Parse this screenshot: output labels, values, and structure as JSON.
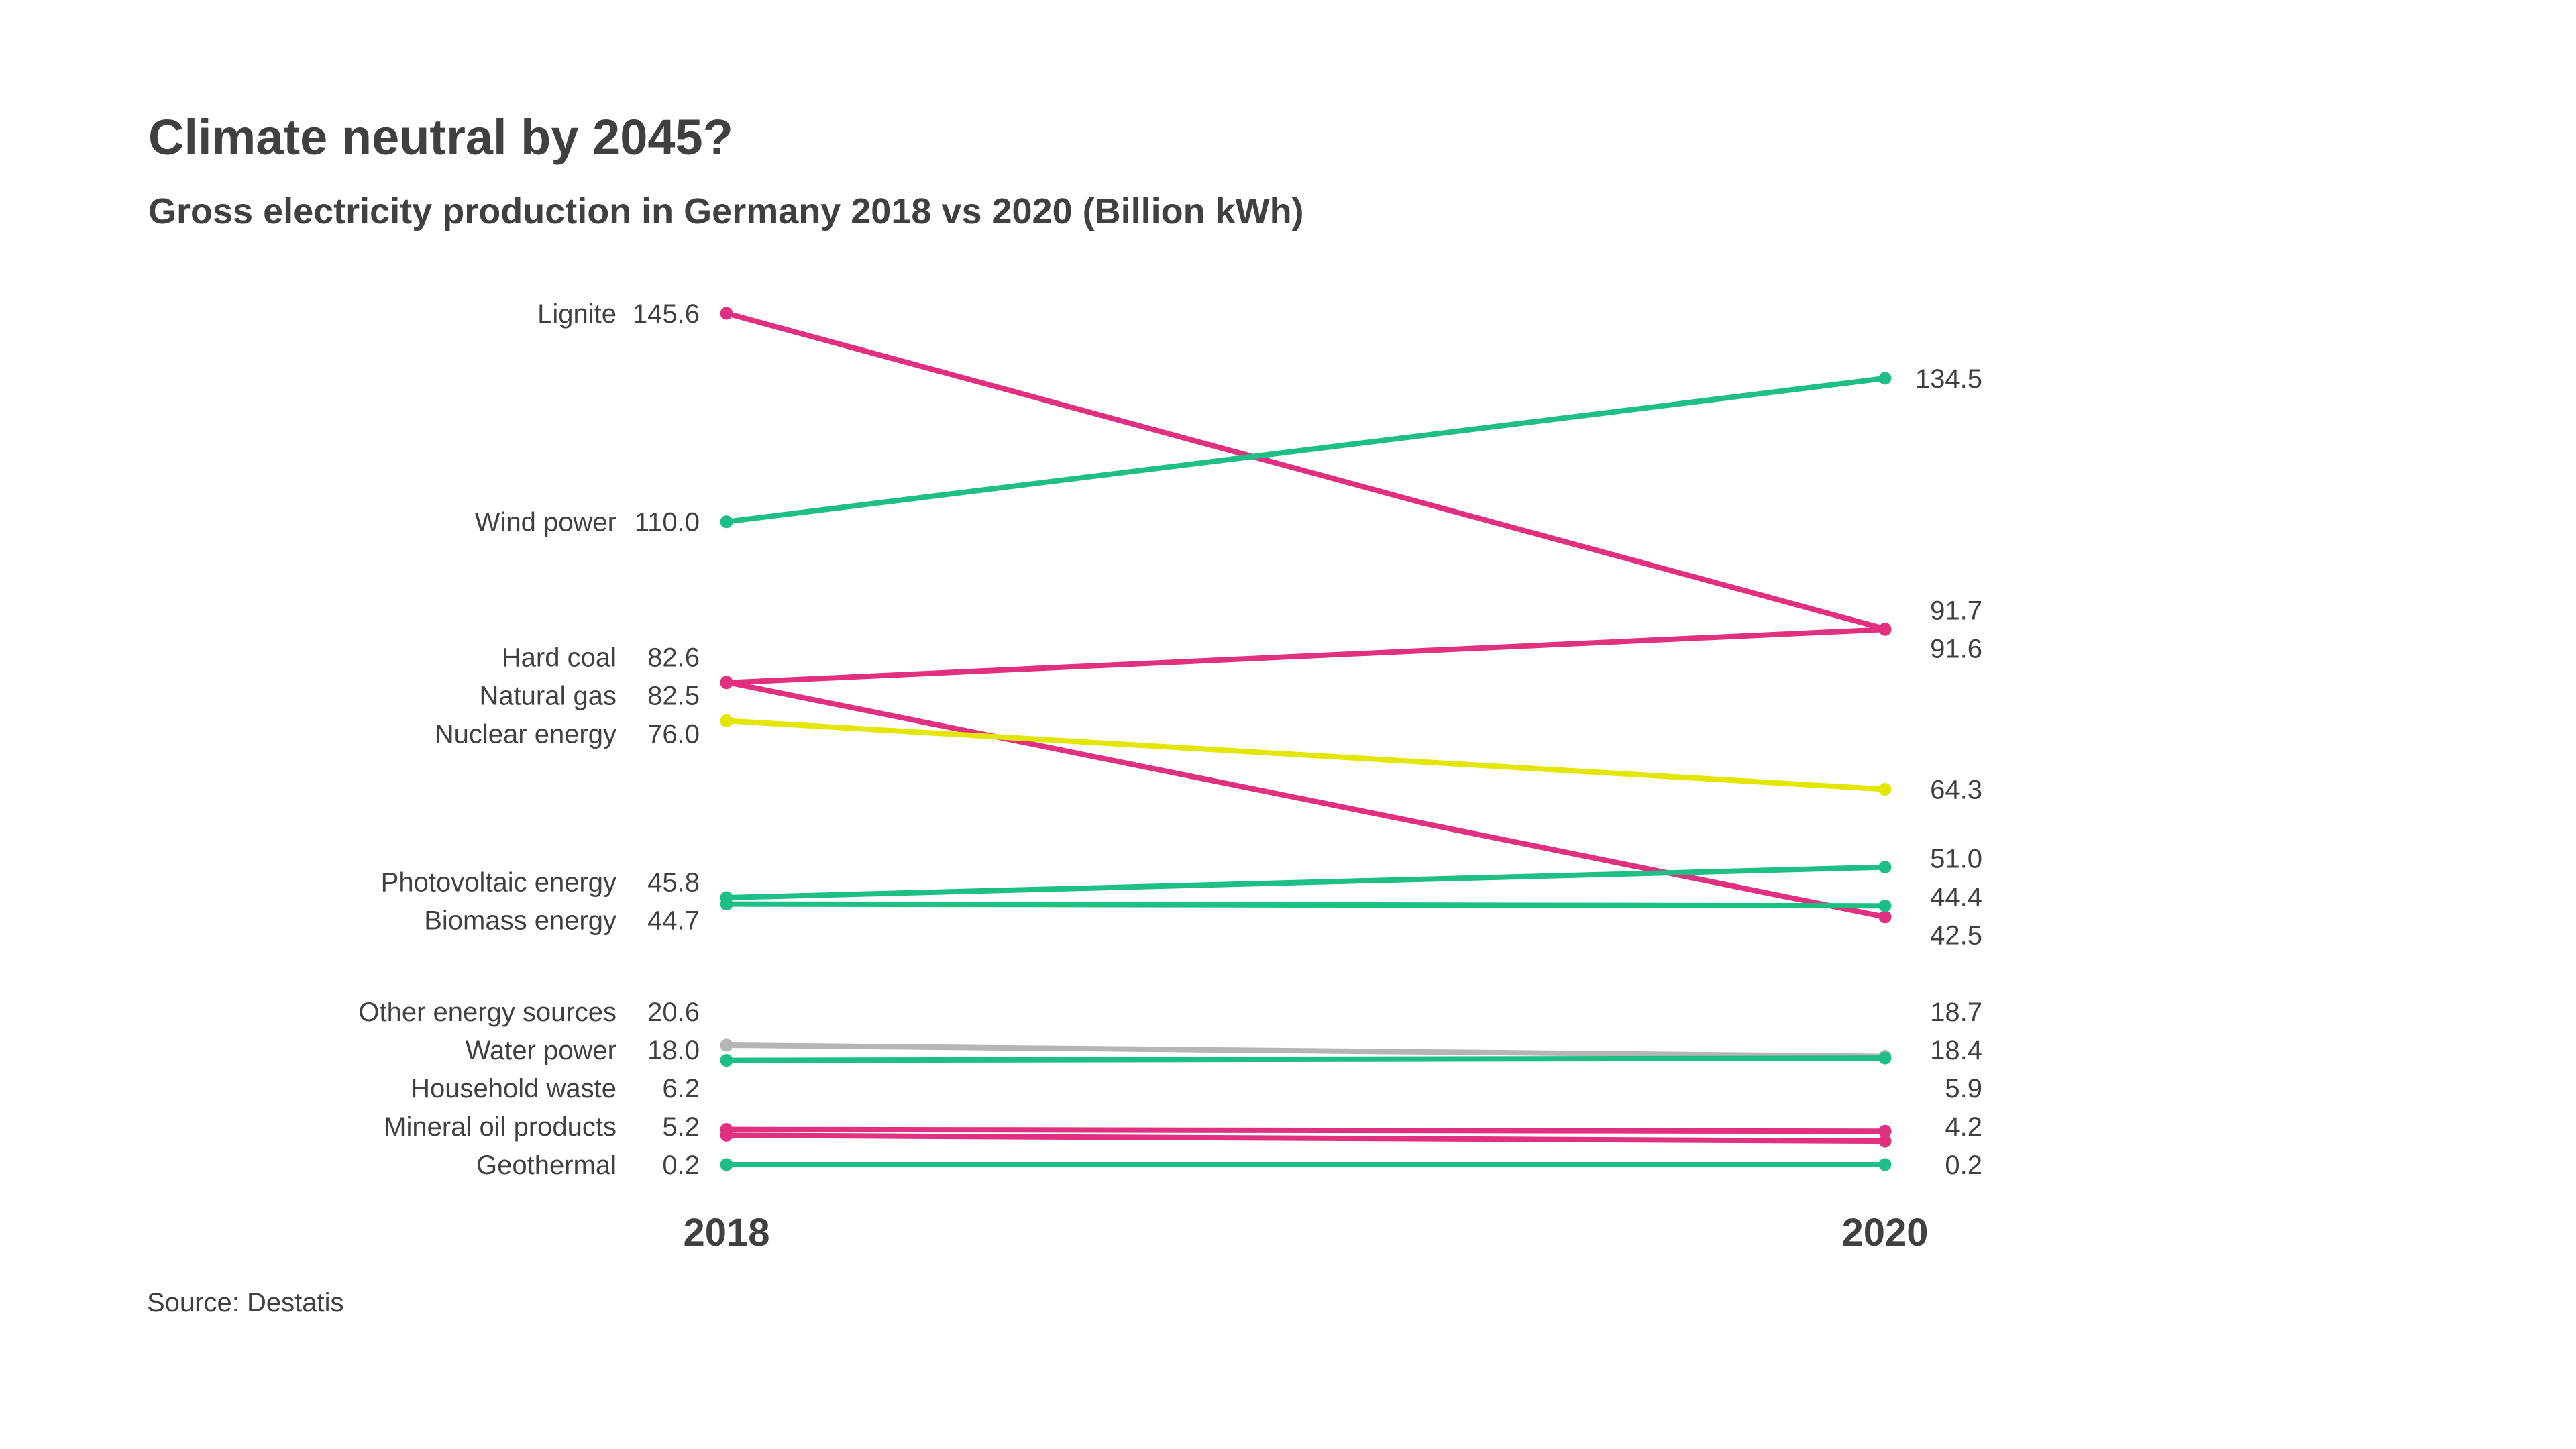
{
  "chart_data": {
    "type": "slope",
    "title": "Climate neutral by 2045?",
    "subtitle": "Gross electricity production in Germany 2018 vs 2020 (Billion kWh)",
    "source": "Source: Destatis",
    "x": [
      "2018",
      "2020"
    ],
    "colors": {
      "fossil": "#e0307f",
      "renewable": "#1dbf85",
      "nuclear": "#e2e600",
      "other": "#b5b5b5",
      "text": "#404040"
    },
    "series": [
      {
        "name": "Lignite",
        "values": [
          145.6,
          91.7
        ],
        "labels": [
          "145.6",
          "91.7"
        ],
        "color": "#e0307f"
      },
      {
        "name": "Wind power",
        "values": [
          110.0,
          134.5
        ],
        "labels": [
          "110.0",
          "134.5"
        ],
        "color": "#1dbf85"
      },
      {
        "name": "Hard coal",
        "values": [
          82.6,
          42.5
        ],
        "labels": [
          "82.6",
          "42.5"
        ],
        "color": "#e0307f"
      },
      {
        "name": "Natural gas",
        "values": [
          82.5,
          91.6
        ],
        "labels": [
          "82.5",
          "91.6"
        ],
        "color": "#e0307f"
      },
      {
        "name": "Nuclear energy",
        "values": [
          76.0,
          64.3
        ],
        "labels": [
          "76.0",
          "64.3"
        ],
        "color": "#e2e600"
      },
      {
        "name": "Photovoltaic energy",
        "values": [
          45.8,
          51.0
        ],
        "labels": [
          "45.8",
          "51.0"
        ],
        "color": "#1dbf85"
      },
      {
        "name": "Biomass energy",
        "values": [
          44.7,
          44.4
        ],
        "labels": [
          "44.7",
          "44.4"
        ],
        "color": "#1dbf85"
      },
      {
        "name": "Other energy sources",
        "values": [
          20.6,
          18.7
        ],
        "labels": [
          "20.6",
          "18.7"
        ],
        "color": "#b5b5b5"
      },
      {
        "name": "Water power",
        "values": [
          18.0,
          18.4
        ],
        "labels": [
          "18.0",
          "18.4"
        ],
        "color": "#1dbf85"
      },
      {
        "name": "Household waste",
        "values": [
          6.2,
          5.9
        ],
        "labels": [
          "6.2",
          "5.9"
        ],
        "color": "#e0307f"
      },
      {
        "name": "Mineral oil products",
        "values": [
          5.2,
          4.2
        ],
        "labels": [
          "5.2",
          "4.2"
        ],
        "color": "#e0307f"
      },
      {
        "name": "Geothermal",
        "values": [
          0.2,
          0.2
        ],
        "labels": [
          "0.2",
          "0.2"
        ],
        "color": "#1dbf85"
      }
    ],
    "ylim": [
      0.2,
      145.6
    ],
    "grid": false,
    "legend": "none"
  }
}
